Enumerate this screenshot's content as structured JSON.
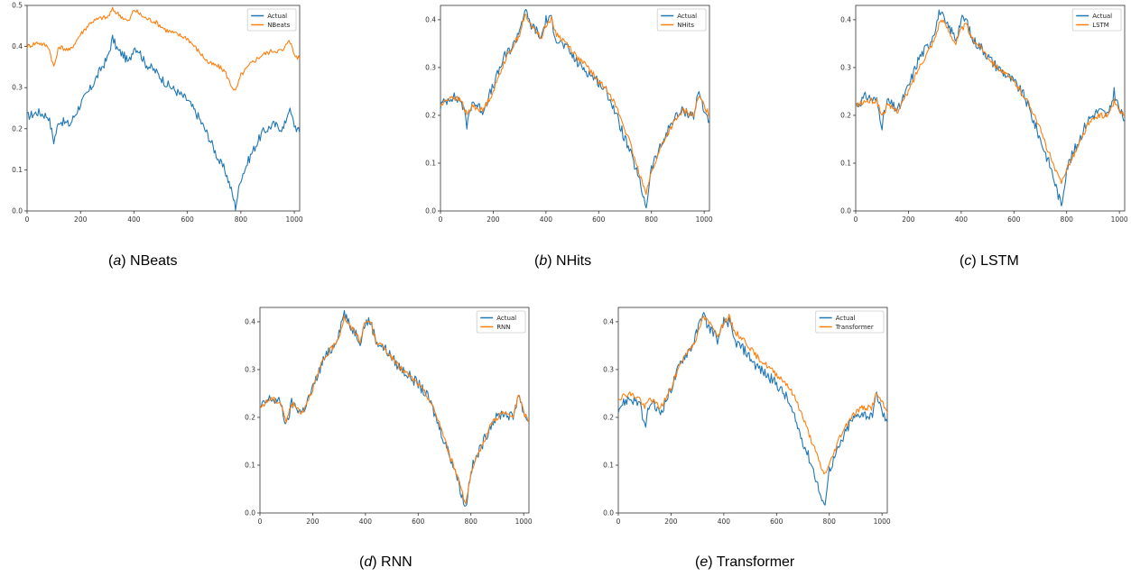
{
  "figure": {
    "panels": [
      {
        "id": "a",
        "caption_letter": "a",
        "caption_label": "NBeats"
      },
      {
        "id": "b",
        "caption_letter": "b",
        "caption_label": "NHits"
      },
      {
        "id": "c",
        "caption_letter": "c",
        "caption_label": "LSTM"
      },
      {
        "id": "d",
        "caption_letter": "d",
        "caption_label": "RNN"
      },
      {
        "id": "e",
        "caption_letter": "e",
        "caption_label": "Transformer"
      }
    ]
  },
  "colors": {
    "actual": "#1f77b4",
    "predicted": "#ff7f0e",
    "axis": "#333333"
  },
  "chart_data": [
    {
      "id": "a",
      "type": "line",
      "xlim": [
        0,
        1020
      ],
      "ylim": [
        0,
        0.5
      ],
      "xticks": [
        0,
        200,
        400,
        600,
        800,
        1000
      ],
      "yticks": [
        0.0,
        0.1,
        0.2,
        0.3,
        0.4,
        0.5
      ],
      "legend_position": "top-right",
      "grid": false,
      "series": [
        {
          "name": "Actual",
          "x": [
            0,
            40,
            80,
            100,
            120,
            160,
            200,
            240,
            280,
            300,
            320,
            340,
            360,
            380,
            400,
            420,
            440,
            480,
            520,
            560,
            600,
            640,
            680,
            720,
            740,
            760,
            780,
            800,
            840,
            880,
            920,
            960,
            980,
            1000,
            1020
          ],
          "y": [
            0.23,
            0.24,
            0.23,
            0.17,
            0.22,
            0.21,
            0.26,
            0.3,
            0.35,
            0.37,
            0.42,
            0.39,
            0.38,
            0.36,
            0.4,
            0.39,
            0.36,
            0.34,
            0.31,
            0.29,
            0.27,
            0.23,
            0.18,
            0.12,
            0.1,
            0.06,
            0.01,
            0.08,
            0.14,
            0.19,
            0.21,
            0.2,
            0.25,
            0.21,
            0.19
          ]
        },
        {
          "name": "NBeats",
          "x": [
            0,
            40,
            80,
            100,
            120,
            160,
            200,
            240,
            280,
            300,
            320,
            340,
            360,
            380,
            400,
            420,
            440,
            480,
            520,
            560,
            600,
            640,
            680,
            720,
            740,
            760,
            780,
            800,
            840,
            880,
            920,
            960,
            980,
            1000,
            1020
          ],
          "y": [
            0.4,
            0.41,
            0.4,
            0.35,
            0.4,
            0.39,
            0.43,
            0.46,
            0.47,
            0.47,
            0.49,
            0.48,
            0.47,
            0.46,
            0.49,
            0.48,
            0.47,
            0.46,
            0.44,
            0.43,
            0.42,
            0.39,
            0.36,
            0.35,
            0.34,
            0.31,
            0.29,
            0.33,
            0.36,
            0.38,
            0.39,
            0.39,
            0.42,
            0.38,
            0.37
          ]
        }
      ]
    },
    {
      "id": "b",
      "type": "line",
      "xlim": [
        0,
        1020
      ],
      "ylim": [
        0,
        0.43
      ],
      "xticks": [
        0,
        200,
        400,
        600,
        800,
        1000
      ],
      "yticks": [
        0.0,
        0.1,
        0.2,
        0.3,
        0.4
      ],
      "legend_position": "top-right",
      "grid": false,
      "series": [
        {
          "name": "Actual",
          "x": [
            0,
            40,
            80,
            100,
            120,
            160,
            200,
            240,
            280,
            300,
            320,
            340,
            360,
            380,
            400,
            420,
            440,
            480,
            520,
            560,
            600,
            640,
            680,
            720,
            740,
            760,
            780,
            800,
            840,
            880,
            920,
            960,
            980,
            1000,
            1020
          ],
          "y": [
            0.22,
            0.24,
            0.23,
            0.18,
            0.23,
            0.21,
            0.26,
            0.32,
            0.35,
            0.38,
            0.42,
            0.39,
            0.38,
            0.36,
            0.4,
            0.4,
            0.36,
            0.34,
            0.31,
            0.29,
            0.27,
            0.24,
            0.18,
            0.12,
            0.09,
            0.05,
            0.01,
            0.09,
            0.14,
            0.19,
            0.21,
            0.2,
            0.25,
            0.21,
            0.19
          ]
        },
        {
          "name": "NHits",
          "x": [
            0,
            40,
            80,
            100,
            120,
            160,
            200,
            240,
            280,
            300,
            320,
            340,
            360,
            380,
            400,
            420,
            440,
            480,
            520,
            560,
            600,
            640,
            680,
            720,
            740,
            760,
            780,
            800,
            840,
            880,
            920,
            960,
            980,
            1000,
            1020
          ],
          "y": [
            0.22,
            0.24,
            0.23,
            0.2,
            0.22,
            0.21,
            0.25,
            0.31,
            0.35,
            0.37,
            0.41,
            0.39,
            0.38,
            0.36,
            0.39,
            0.4,
            0.37,
            0.35,
            0.32,
            0.3,
            0.27,
            0.25,
            0.2,
            0.14,
            0.1,
            0.07,
            0.04,
            0.08,
            0.14,
            0.18,
            0.21,
            0.2,
            0.24,
            0.22,
            0.2
          ]
        }
      ]
    },
    {
      "id": "c",
      "type": "line",
      "xlim": [
        0,
        1020
      ],
      "ylim": [
        0,
        0.43
      ],
      "xticks": [
        0,
        200,
        400,
        600,
        800,
        1000
      ],
      "yticks": [
        0.0,
        0.1,
        0.2,
        0.3,
        0.4
      ],
      "legend_position": "top-right",
      "grid": false,
      "series": [
        {
          "name": "Actual",
          "x": [
            0,
            40,
            80,
            100,
            120,
            160,
            200,
            240,
            280,
            300,
            320,
            340,
            360,
            380,
            400,
            420,
            440,
            480,
            520,
            560,
            600,
            640,
            680,
            720,
            740,
            760,
            780,
            800,
            840,
            880,
            920,
            960,
            980,
            1000,
            1020
          ],
          "y": [
            0.22,
            0.24,
            0.23,
            0.18,
            0.23,
            0.21,
            0.26,
            0.32,
            0.35,
            0.38,
            0.42,
            0.39,
            0.38,
            0.36,
            0.4,
            0.4,
            0.36,
            0.34,
            0.31,
            0.29,
            0.27,
            0.24,
            0.18,
            0.12,
            0.09,
            0.05,
            0.01,
            0.09,
            0.14,
            0.19,
            0.21,
            0.2,
            0.25,
            0.21,
            0.19
          ]
        },
        {
          "name": "LSTM",
          "x": [
            0,
            40,
            80,
            100,
            120,
            160,
            200,
            240,
            280,
            300,
            320,
            340,
            360,
            380,
            400,
            420,
            440,
            480,
            520,
            560,
            600,
            640,
            680,
            720,
            740,
            760,
            780,
            800,
            840,
            880,
            920,
            960,
            980,
            1000,
            1020
          ],
          "y": [
            0.22,
            0.23,
            0.23,
            0.2,
            0.22,
            0.21,
            0.25,
            0.3,
            0.34,
            0.36,
            0.4,
            0.39,
            0.37,
            0.35,
            0.38,
            0.39,
            0.36,
            0.34,
            0.31,
            0.29,
            0.27,
            0.24,
            0.2,
            0.14,
            0.11,
            0.08,
            0.06,
            0.09,
            0.13,
            0.18,
            0.2,
            0.2,
            0.23,
            0.21,
            0.2
          ]
        }
      ]
    },
    {
      "id": "d",
      "type": "line",
      "xlim": [
        0,
        1020
      ],
      "ylim": [
        0,
        0.43
      ],
      "xticks": [
        0,
        200,
        400,
        600,
        800,
        1000
      ],
      "yticks": [
        0.0,
        0.1,
        0.2,
        0.3,
        0.4
      ],
      "legend_position": "top-right",
      "grid": false,
      "series": [
        {
          "name": "Actual",
          "x": [
            0,
            40,
            80,
            100,
            120,
            160,
            200,
            240,
            280,
            300,
            320,
            340,
            360,
            380,
            400,
            420,
            440,
            480,
            520,
            560,
            600,
            640,
            680,
            720,
            740,
            760,
            780,
            800,
            840,
            880,
            920,
            960,
            980,
            1000,
            1020
          ],
          "y": [
            0.22,
            0.24,
            0.23,
            0.18,
            0.23,
            0.21,
            0.26,
            0.32,
            0.35,
            0.38,
            0.42,
            0.39,
            0.38,
            0.36,
            0.4,
            0.4,
            0.36,
            0.34,
            0.31,
            0.29,
            0.27,
            0.24,
            0.18,
            0.12,
            0.09,
            0.05,
            0.01,
            0.09,
            0.14,
            0.19,
            0.21,
            0.2,
            0.25,
            0.21,
            0.19
          ]
        },
        {
          "name": "RNN",
          "x": [
            0,
            40,
            80,
            100,
            120,
            160,
            200,
            240,
            280,
            300,
            320,
            340,
            360,
            380,
            400,
            420,
            440,
            480,
            520,
            560,
            600,
            640,
            680,
            720,
            740,
            760,
            780,
            800,
            840,
            880,
            920,
            960,
            980,
            1000,
            1020
          ],
          "y": [
            0.22,
            0.24,
            0.23,
            0.19,
            0.23,
            0.21,
            0.26,
            0.32,
            0.35,
            0.37,
            0.41,
            0.39,
            0.38,
            0.36,
            0.4,
            0.4,
            0.36,
            0.34,
            0.31,
            0.29,
            0.27,
            0.24,
            0.19,
            0.12,
            0.09,
            0.06,
            0.02,
            0.08,
            0.14,
            0.19,
            0.21,
            0.2,
            0.25,
            0.21,
            0.19
          ]
        }
      ]
    },
    {
      "id": "e",
      "type": "line",
      "xlim": [
        0,
        1020
      ],
      "ylim": [
        0,
        0.43
      ],
      "xticks": [
        0,
        200,
        400,
        600,
        800,
        1000
      ],
      "yticks": [
        0.0,
        0.1,
        0.2,
        0.3,
        0.4
      ],
      "legend_position": "top-right",
      "grid": false,
      "series": [
        {
          "name": "Actual",
          "x": [
            0,
            40,
            80,
            100,
            120,
            160,
            200,
            240,
            280,
            300,
            320,
            340,
            360,
            380,
            400,
            420,
            440,
            480,
            520,
            560,
            600,
            640,
            680,
            720,
            740,
            760,
            780,
            800,
            840,
            880,
            920,
            960,
            980,
            1000,
            1020
          ],
          "y": [
            0.22,
            0.24,
            0.23,
            0.18,
            0.23,
            0.21,
            0.26,
            0.32,
            0.35,
            0.38,
            0.42,
            0.39,
            0.38,
            0.36,
            0.4,
            0.4,
            0.36,
            0.34,
            0.31,
            0.29,
            0.27,
            0.24,
            0.18,
            0.12,
            0.09,
            0.05,
            0.01,
            0.09,
            0.14,
            0.19,
            0.21,
            0.2,
            0.25,
            0.21,
            0.19
          ]
        },
        {
          "name": "Transformer",
          "x": [
            0,
            40,
            80,
            100,
            120,
            160,
            200,
            240,
            280,
            300,
            320,
            340,
            360,
            380,
            400,
            420,
            440,
            480,
            520,
            560,
            600,
            640,
            680,
            720,
            740,
            760,
            780,
            800,
            840,
            880,
            920,
            960,
            980,
            1000,
            1020
          ],
          "y": [
            0.24,
            0.25,
            0.24,
            0.22,
            0.24,
            0.22,
            0.26,
            0.32,
            0.35,
            0.37,
            0.41,
            0.4,
            0.39,
            0.37,
            0.4,
            0.41,
            0.38,
            0.36,
            0.33,
            0.31,
            0.29,
            0.27,
            0.23,
            0.17,
            0.14,
            0.11,
            0.08,
            0.1,
            0.16,
            0.2,
            0.22,
            0.22,
            0.25,
            0.23,
            0.21
          ]
        }
      ]
    }
  ]
}
